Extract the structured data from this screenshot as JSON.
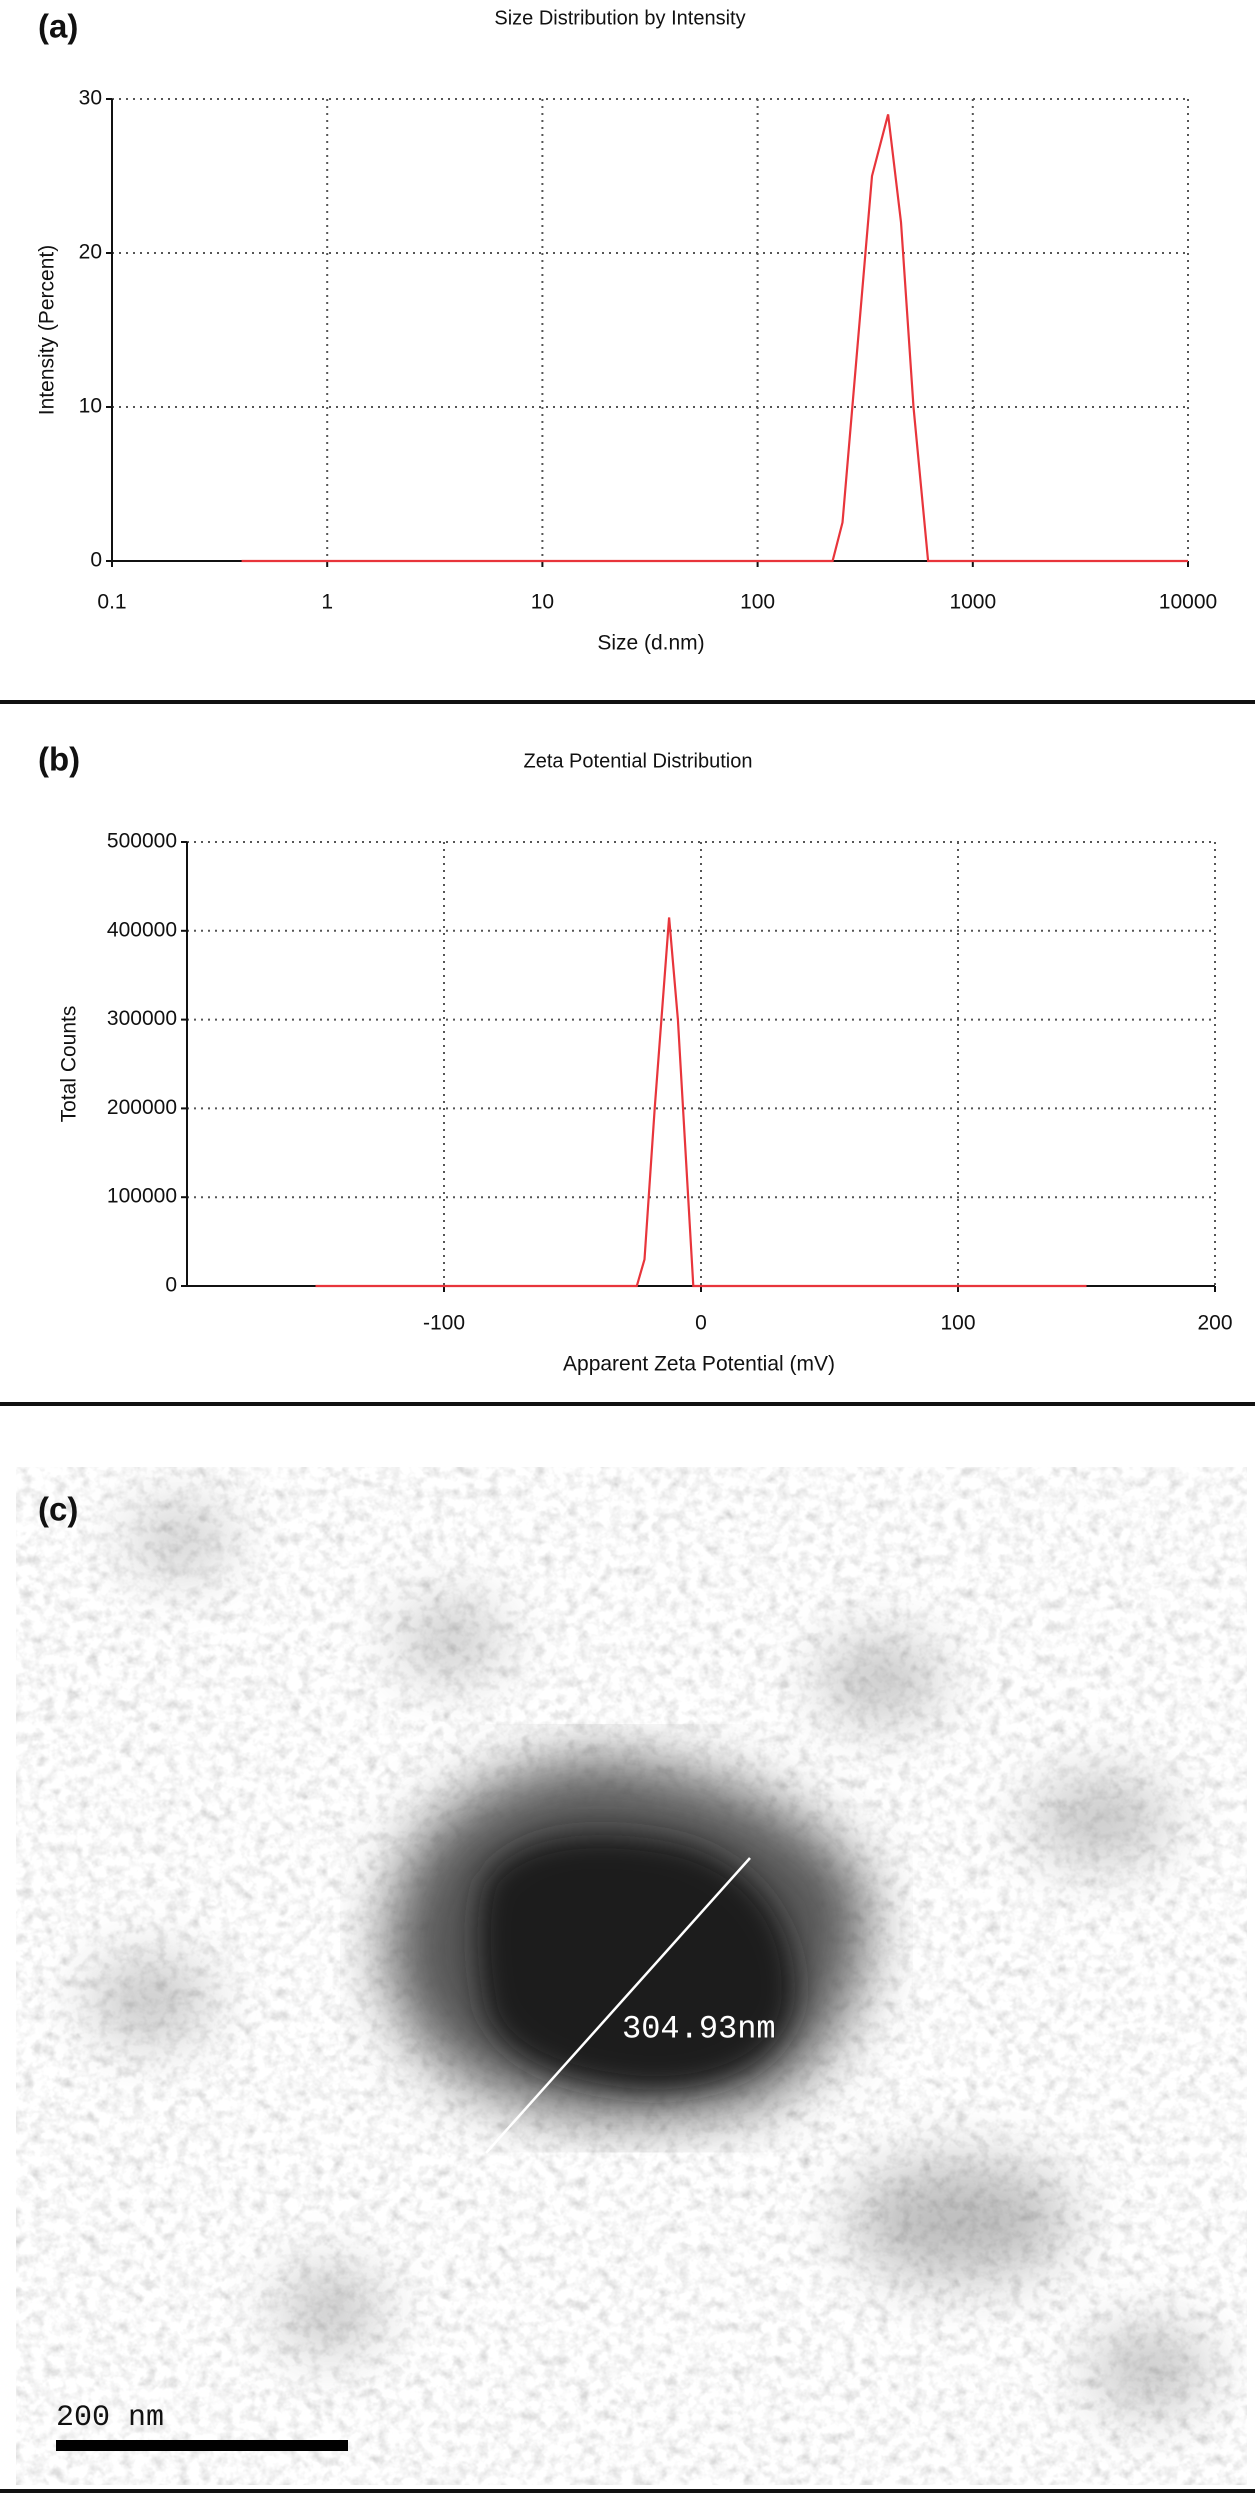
{
  "chart_data": [
    {
      "type": "line",
      "panel_label": "(a)",
      "title": "Size Distribution by Intensity",
      "x_label": "Size (d.nm)",
      "y_label": "Intensity (Percent)",
      "xscale": "log",
      "x": [
        0.4,
        1,
        10,
        100,
        200,
        223,
        248,
        340,
        404,
        464,
        530,
        620,
        1000,
        10000
      ],
      "values": [
        0,
        0,
        0,
        0,
        0,
        0,
        2.5,
        25,
        29,
        22,
        10,
        0,
        0,
        0
      ],
      "color": "#e8353b",
      "xlim": [
        0.1,
        10000
      ],
      "xticks": [
        0.1,
        1,
        10,
        100,
        1000,
        10000
      ],
      "ylim": [
        0,
        30
      ],
      "yticks": [
        0,
        10,
        20,
        30
      ],
      "grid": true
    },
    {
      "type": "line",
      "panel_label": "(b)",
      "title": "Zeta Potential Distribution",
      "x_label": "Apparent Zeta Potential (mV)",
      "y_label": "Total Counts",
      "xscale": "linear",
      "x": [
        -150,
        -25,
        -22,
        -18,
        -12.4,
        -9,
        -3,
        150
      ],
      "values": [
        0,
        0,
        30000,
        200000,
        415000,
        300000,
        0,
        0
      ],
      "color": "#e8353b",
      "xlim": [
        -200,
        200
      ],
      "xticks": [
        -100,
        0,
        100,
        200
      ],
      "ylim": [
        0,
        500000
      ],
      "yticks": [
        0,
        100000,
        200000,
        300000,
        400000,
        500000
      ],
      "grid": true
    }
  ],
  "image": {
    "panel_label": "(c)",
    "measurement": "304.93nm",
    "scale_bar": "200 nm"
  }
}
